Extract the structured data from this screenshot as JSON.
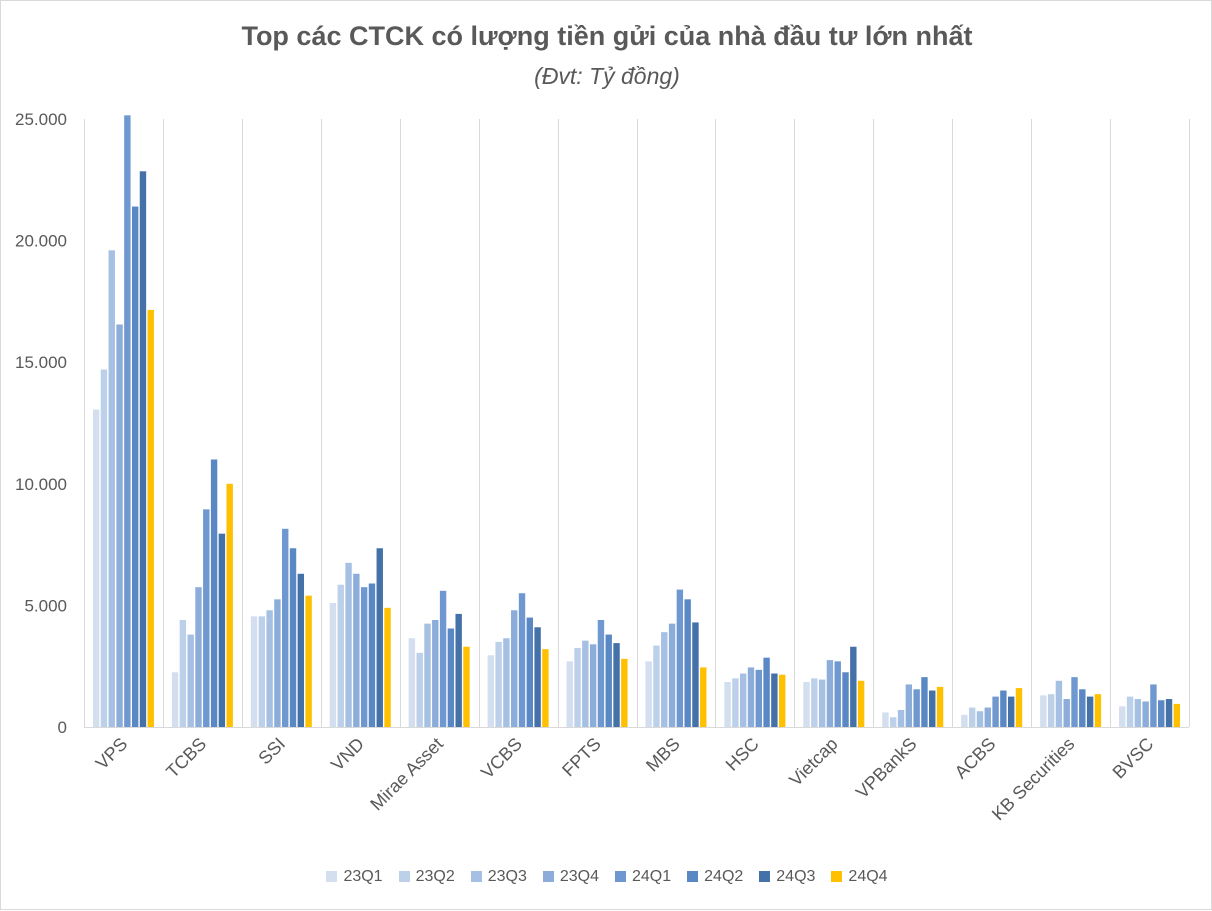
{
  "chart_data": {
    "type": "bar",
    "title": "Top các CTCK có lượng tiền gửi của nhà đầu tư lớn nhất",
    "subtitle": "(Đvt: Tỷ đồng)",
    "xlabel": "",
    "ylabel": "",
    "ylim": [
      0,
      25000
    ],
    "yticks": [
      "0",
      "5.000",
      "10.000",
      "15.000",
      "20.000",
      "25.000"
    ],
    "ytick_values": [
      0,
      5000,
      10000,
      15000,
      20000,
      25000
    ],
    "grid": "vertical separators between categories",
    "legend_position": "bottom",
    "categories": [
      "VPS",
      "TCBS",
      "SSI",
      "VND",
      "Mirae Asset",
      "VCBS",
      "FPTS",
      "MBS",
      "HSC",
      "Vietcap",
      "VPBankS",
      "ACBS",
      "KB Securities",
      "BVSC"
    ],
    "series": [
      {
        "name": "23Q1",
        "color": "#d3deef",
        "values": [
          13050,
          2250,
          4550,
          5100,
          3650,
          2950,
          2700,
          2700,
          1850,
          1850,
          600,
          500,
          1300,
          850
        ]
      },
      {
        "name": "23Q2",
        "color": "#bdd0ea",
        "values": [
          14700,
          4400,
          4550,
          5850,
          3050,
          3500,
          3250,
          3350,
          2000,
          2000,
          400,
          800,
          1350,
          1250
        ]
      },
      {
        "name": "23Q3",
        "color": "#a6c0e4",
        "values": [
          19600,
          3800,
          4800,
          6750,
          4250,
          3650,
          3550,
          3900,
          2200,
          1950,
          700,
          650,
          1900,
          1150
        ]
      },
      {
        "name": "23Q4",
        "color": "#8cadda",
        "values": [
          16550,
          5750,
          5250,
          6300,
          4400,
          4800,
          3400,
          4250,
          2450,
          2750,
          1750,
          800,
          1150,
          1050
        ]
      },
      {
        "name": "24Q1",
        "color": "#6e98cf",
        "values": [
          25150,
          8950,
          8150,
          5750,
          5600,
          5500,
          4400,
          5650,
          2350,
          2700,
          1550,
          1250,
          2050,
          1750
        ]
      },
      {
        "name": "24Q2",
        "color": "#5a88c4",
        "values": [
          21400,
          11000,
          7350,
          5900,
          4050,
          4500,
          3800,
          5250,
          2850,
          2250,
          2050,
          1500,
          1550,
          1100
        ]
      },
      {
        "name": "24Q3",
        "color": "#4472a8",
        "values": [
          22850,
          7950,
          6300,
          7350,
          4650,
          4100,
          3450,
          4300,
          2200,
          3300,
          1500,
          1250,
          1250,
          1150
        ]
      },
      {
        "name": "24Q4",
        "color": "#ffc000",
        "values": [
          17150,
          10000,
          5400,
          4900,
          3300,
          3200,
          2800,
          2450,
          2150,
          1900,
          1650,
          1600,
          1350,
          950
        ]
      }
    ]
  }
}
